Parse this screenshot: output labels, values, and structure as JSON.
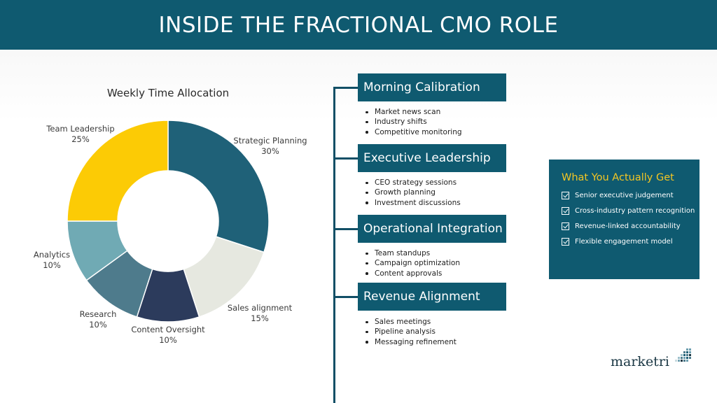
{
  "header": {
    "title": "INSIDE THE FRACTIONAL CMO ROLE"
  },
  "chart_data": {
    "type": "pie",
    "title": "Weekly Time Allocation",
    "categories": [
      "Strategic Planning",
      "Sales alignment",
      "Content Oversight",
      "Research",
      "Analytics",
      "Team Leadership"
    ],
    "values": [
      30,
      15,
      10,
      10,
      10,
      25
    ],
    "value_labels": [
      "30%",
      "15%",
      "10%",
      "10%",
      "10%",
      "25%"
    ],
    "colors": [
      "#1f6178",
      "#e6e8e0",
      "#2c3b5c",
      "#4e7b8c",
      "#70aab4",
      "#fccb05"
    ],
    "donut": true
  },
  "stages": [
    {
      "title": "Morning Calibration",
      "items": [
        "Market news scan",
        "Industry shifts",
        "Competitive monitoring"
      ]
    },
    {
      "title": "Executive Leadership",
      "items": [
        "CEO strategy sessions",
        "Growth planning",
        "Investment discussions"
      ]
    },
    {
      "title": "Operational Integration",
      "items": [
        "Team standups",
        "Campaign optimization",
        "Content approvals"
      ]
    },
    {
      "title": "Revenue Alignment",
      "items": [
        "Sales meetings",
        "Pipeline analysis",
        "Messaging refinement"
      ]
    }
  ],
  "benefits": {
    "title": "What You Actually Get",
    "items": [
      "Senior executive judgement",
      "Cross-industry pattern recognition",
      "Revenue-linked accountability",
      "Flexible engagement model"
    ]
  },
  "logo": {
    "text": "marketri"
  },
  "colors": {
    "primary": "#0f5a70",
    "accent": "#f3c623"
  }
}
